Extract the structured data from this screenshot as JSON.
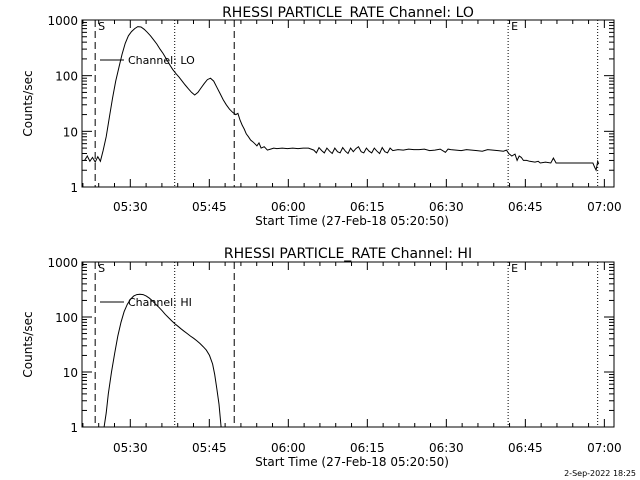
{
  "footer_text": "2-Sep-2022 18:25",
  "chart_data": [
    {
      "type": "line",
      "title": "RHESSI PARTICLE_RATE Channel: LO",
      "xlabel": "Start Time (27-Feb-18 05:20:50)",
      "ylabel": "Counts/sec",
      "x_unit": "minutes since start time",
      "xlim": [
        0,
        101
      ],
      "ylim": [
        1,
        1000
      ],
      "yscale": "log",
      "grid": false,
      "x_ticks": [
        {
          "x": 9.17,
          "label": "05:30"
        },
        {
          "x": 24.17,
          "label": "05:45"
        },
        {
          "x": 39.17,
          "label": "06:00"
        },
        {
          "x": 54.17,
          "label": "06:15"
        },
        {
          "x": 69.17,
          "label": "06:30"
        },
        {
          "x": 84.17,
          "label": "06:45"
        },
        {
          "x": 99.17,
          "label": "07:00"
        }
      ],
      "y_ticks": [
        {
          "y": 1,
          "label": "1"
        },
        {
          "y": 10,
          "label": "10"
        },
        {
          "y": 100,
          "label": "100"
        },
        {
          "y": 1000,
          "label": "1000"
        }
      ],
      "legend": "top-left",
      "legend_label": "Channel: LO",
      "markers": [
        {
          "x": 2.5,
          "style": "dashed",
          "label": "S"
        },
        {
          "x": 17.6,
          "style": "dotted",
          "label": ""
        },
        {
          "x": 28.9,
          "style": "dashed",
          "label": ""
        },
        {
          "x": 80.9,
          "style": "dotted",
          "label": "E"
        },
        {
          "x": 97.9,
          "style": "dotted",
          "label": ""
        }
      ],
      "series": [
        {
          "name": "Channel: LO",
          "points": [
            [
              0.5,
              3.0
            ],
            [
              1.0,
              3.6
            ],
            [
              1.5,
              2.9
            ],
            [
              2.0,
              3.4
            ],
            [
              2.5,
              2.8
            ],
            [
              3.0,
              3.5
            ],
            [
              3.5,
              2.9
            ],
            [
              4.0,
              4.5
            ],
            [
              4.6,
              8
            ],
            [
              5.2,
              18
            ],
            [
              5.8,
              40
            ],
            [
              6.4,
              80
            ],
            [
              7.0,
              140
            ],
            [
              7.6,
              240
            ],
            [
              8.2,
              380
            ],
            [
              8.8,
              520
            ],
            [
              9.4,
              620
            ],
            [
              10.0,
              700
            ],
            [
              10.6,
              760
            ],
            [
              11.2,
              750
            ],
            [
              11.8,
              680
            ],
            [
              12.4,
              600
            ],
            [
              13.0,
              520
            ],
            [
              13.6,
              440
            ],
            [
              14.2,
              370
            ],
            [
              14.8,
              300
            ],
            [
              15.4,
              250
            ],
            [
              16.0,
              200
            ],
            [
              16.6,
              160
            ],
            [
              17.2,
              130
            ],
            [
              17.8,
              110
            ],
            [
              18.4,
              95
            ],
            [
              19.0,
              80
            ],
            [
              19.6,
              68
            ],
            [
              20.2,
              58
            ],
            [
              20.8,
              50
            ],
            [
              21.4,
              45
            ],
            [
              22.0,
              50
            ],
            [
              22.6,
              60
            ],
            [
              23.2,
              72
            ],
            [
              23.8,
              85
            ],
            [
              24.4,
              90
            ],
            [
              25.0,
              80
            ],
            [
              25.6,
              62
            ],
            [
              26.2,
              48
            ],
            [
              26.8,
              37
            ],
            [
              27.4,
              30
            ],
            [
              28.0,
              25
            ],
            [
              28.6,
              22
            ],
            [
              29.2,
              20
            ],
            [
              29.6,
              21
            ],
            [
              30.0,
              16
            ],
            [
              30.4,
              13
            ],
            [
              30.8,
              11
            ],
            [
              31.2,
              9
            ],
            [
              31.6,
              8
            ],
            [
              32.0,
              7
            ],
            [
              32.4,
              6.5
            ],
            [
              32.8,
              6
            ],
            [
              33.2,
              5.5
            ],
            [
              33.6,
              6.2
            ],
            [
              34.0,
              5
            ],
            [
              34.6,
              5.3
            ],
            [
              35.2,
              4.6
            ],
            [
              35.8,
              4.8
            ],
            [
              36.4,
              5.0
            ],
            [
              37.0,
              4.9
            ],
            [
              38.0,
              5.0
            ],
            [
              39.0,
              4.9
            ],
            [
              40.0,
              5.0
            ],
            [
              41.0,
              4.9
            ],
            [
              42.0,
              5.0
            ],
            [
              43.0,
              5.0
            ],
            [
              44.0,
              4.6
            ],
            [
              44.5,
              4.1
            ],
            [
              45.0,
              5.1
            ],
            [
              45.5,
              4.5
            ],
            [
              46.0,
              4.1
            ],
            [
              46.5,
              5.0
            ],
            [
              47.0,
              4.4
            ],
            [
              47.5,
              4.0
            ],
            [
              48.0,
              5.0
            ],
            [
              48.5,
              4.3
            ],
            [
              49.0,
              4.1
            ],
            [
              49.5,
              5.1
            ],
            [
              50.0,
              4.4
            ],
            [
              50.5,
              4.0
            ],
            [
              51.0,
              5.0
            ],
            [
              51.5,
              4.3
            ],
            [
              52.0,
              4.9
            ],
            [
              52.5,
              5.3
            ],
            [
              53.0,
              4.3
            ],
            [
              53.5,
              4.1
            ],
            [
              54.0,
              5.0
            ],
            [
              54.5,
              4.4
            ],
            [
              55.0,
              4.1
            ],
            [
              55.5,
              5.0
            ],
            [
              56.0,
              4.4
            ],
            [
              56.5,
              4.0
            ],
            [
              57.0,
              5.1
            ],
            [
              57.5,
              4.3
            ],
            [
              58.0,
              4.1
            ],
            [
              58.5,
              5.0
            ],
            [
              59.0,
              4.5
            ],
            [
              60.0,
              4.7
            ],
            [
              61.0,
              4.6
            ],
            [
              62.0,
              4.8
            ],
            [
              63.0,
              4.7
            ],
            [
              64.0,
              4.7
            ],
            [
              65.0,
              4.8
            ],
            [
              66.0,
              4.5
            ],
            [
              67.0,
              4.6
            ],
            [
              68.0,
              4.8
            ],
            [
              69.0,
              4.2
            ],
            [
              69.5,
              4.8
            ],
            [
              70.0,
              4.7
            ],
            [
              71.0,
              4.6
            ],
            [
              72.0,
              4.5
            ],
            [
              73.0,
              4.7
            ],
            [
              74.0,
              4.6
            ],
            [
              75.0,
              4.5
            ],
            [
              76.0,
              4.4
            ],
            [
              77.0,
              4.7
            ],
            [
              78.0,
              4.6
            ],
            [
              79.0,
              4.5
            ],
            [
              80.0,
              4.4
            ],
            [
              80.6,
              4.6
            ],
            [
              81.0,
              4.0
            ],
            [
              81.6,
              3.6
            ],
            [
              82.2,
              3.9
            ],
            [
              82.6,
              3.0
            ],
            [
              83.0,
              3.6
            ],
            [
              83.4,
              3.4
            ],
            [
              83.8,
              3.0
            ],
            [
              84.4,
              3.0
            ],
            [
              85.0,
              2.9
            ],
            [
              86.0,
              2.8
            ],
            [
              86.6,
              2.9
            ],
            [
              87.0,
              2.7
            ],
            [
              88.0,
              2.8
            ],
            [
              89.0,
              2.7
            ],
            [
              89.5,
              3.3
            ],
            [
              90.0,
              2.7
            ],
            [
              91.0,
              2.7
            ],
            [
              92.0,
              2.7
            ],
            [
              93.0,
              2.7
            ],
            [
              94.0,
              2.7
            ],
            [
              95.0,
              2.7
            ],
            [
              96.0,
              2.7
            ],
            [
              97.0,
              2.7
            ],
            [
              97.3,
              2.3
            ],
            [
              97.6,
              2.0
            ],
            [
              97.9,
              2.9
            ],
            [
              98.1,
              2.6
            ]
          ]
        }
      ]
    },
    {
      "type": "line",
      "title": "RHESSI PARTICLE_RATE Channel: HI",
      "xlabel": "Start Time (27-Feb-18 05:20:50)",
      "ylabel": "Counts/sec",
      "x_unit": "minutes since start time",
      "xlim": [
        0,
        101
      ],
      "ylim": [
        1,
        1000
      ],
      "yscale": "log",
      "grid": false,
      "x_ticks": [
        {
          "x": 9.17,
          "label": "05:30"
        },
        {
          "x": 24.17,
          "label": "05:45"
        },
        {
          "x": 39.17,
          "label": "06:00"
        },
        {
          "x": 54.17,
          "label": "06:15"
        },
        {
          "x": 69.17,
          "label": "06:30"
        },
        {
          "x": 84.17,
          "label": "06:45"
        },
        {
          "x": 99.17,
          "label": "07:00"
        }
      ],
      "y_ticks": [
        {
          "y": 1,
          "label": "1"
        },
        {
          "y": 10,
          "label": "10"
        },
        {
          "y": 100,
          "label": "100"
        },
        {
          "y": 1000,
          "label": "1000"
        }
      ],
      "legend": "top-left",
      "legend_label": "Channel: HI",
      "markers": [
        {
          "x": 2.5,
          "style": "dashed",
          "label": "S"
        },
        {
          "x": 17.6,
          "style": "dotted",
          "label": ""
        },
        {
          "x": 28.9,
          "style": "dashed",
          "label": ""
        },
        {
          "x": 80.9,
          "style": "dotted",
          "label": "E"
        },
        {
          "x": 97.9,
          "style": "dotted",
          "label": ""
        }
      ],
      "series": [
        {
          "name": "Channel: HI",
          "points": [
            [
              4.2,
              1.0
            ],
            [
              4.6,
              1.8
            ],
            [
              5.0,
              4
            ],
            [
              5.6,
              10
            ],
            [
              6.2,
              22
            ],
            [
              6.8,
              45
            ],
            [
              7.4,
              80
            ],
            [
              8.0,
              125
            ],
            [
              8.6,
              170
            ],
            [
              9.2,
              210
            ],
            [
              9.8,
              240
            ],
            [
              10.4,
              255
            ],
            [
              11.0,
              260
            ],
            [
              11.6,
              255
            ],
            [
              12.2,
              240
            ],
            [
              12.8,
              220
            ],
            [
              13.4,
              195
            ],
            [
              14.0,
              170
            ],
            [
              14.6,
              150
            ],
            [
              15.2,
              130
            ],
            [
              15.8,
              112
            ],
            [
              16.4,
              98
            ],
            [
              17.0,
              86
            ],
            [
              17.6,
              76
            ],
            [
              18.2,
              68
            ],
            [
              18.8,
              61
            ],
            [
              19.4,
              55
            ],
            [
              20.0,
              50
            ],
            [
              20.6,
              45
            ],
            [
              21.2,
              41
            ],
            [
              21.8,
              37
            ],
            [
              22.4,
              33
            ],
            [
              23.0,
              29
            ],
            [
              23.6,
              25
            ],
            [
              24.2,
              20
            ],
            [
              24.8,
              14
            ],
            [
              25.2,
              9
            ],
            [
              25.6,
              5
            ],
            [
              26.0,
              2.6
            ],
            [
              26.4,
              1.0
            ]
          ]
        }
      ]
    }
  ]
}
